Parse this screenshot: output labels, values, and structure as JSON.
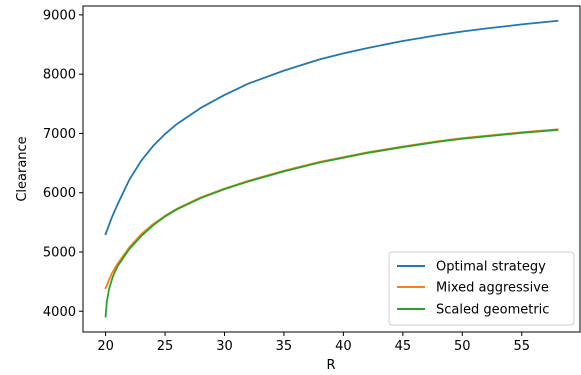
{
  "chart_data": {
    "type": "line",
    "xlabel": "R",
    "ylabel": "Clearance",
    "xlim": [
      18.1,
      59.9
    ],
    "ylim": [
      3650,
      9150
    ],
    "xticks": [
      20,
      25,
      30,
      35,
      40,
      45,
      50,
      55
    ],
    "yticks": [
      4000,
      5000,
      6000,
      7000,
      8000,
      9000
    ],
    "legend_position": "lower-right",
    "grid": false,
    "series": [
      {
        "name": "Optimal strategy",
        "color": "#1f77b4",
        "x": [
          20,
          20.5,
          21,
          22,
          23,
          24,
          25,
          26,
          28,
          30,
          32,
          35,
          38,
          40,
          42,
          45,
          48,
          50,
          52,
          55,
          58
        ],
        "y": [
          5300,
          5570,
          5800,
          6220,
          6540,
          6790,
          6990,
          7160,
          7430,
          7650,
          7840,
          8060,
          8250,
          8350,
          8440,
          8560,
          8660,
          8720,
          8770,
          8840,
          8900
        ]
      },
      {
        "name": "Mixed aggressive",
        "color": "#ff7f0e",
        "x": [
          20,
          20.5,
          21,
          22,
          23,
          24,
          25,
          26,
          28,
          30,
          32,
          35,
          38,
          40,
          42,
          45,
          48,
          50,
          52,
          55,
          58
        ],
        "y": [
          4390,
          4630,
          4800,
          5080,
          5300,
          5470,
          5610,
          5730,
          5920,
          6070,
          6200,
          6370,
          6520,
          6600,
          6680,
          6780,
          6870,
          6920,
          6960,
          7020,
          7070
        ]
      },
      {
        "name": "Scaled geometric",
        "color": "#2ca02c",
        "x": [
          20,
          20.1,
          20.3,
          20.6,
          21,
          22,
          23,
          24,
          25,
          26,
          28,
          30,
          32,
          35,
          38,
          40,
          42,
          45,
          48,
          50,
          52,
          55,
          58
        ],
        "y": [
          3910,
          4160,
          4380,
          4580,
          4760,
          5050,
          5270,
          5450,
          5600,
          5720,
          5910,
          6060,
          6190,
          6360,
          6510,
          6590,
          6670,
          6770,
          6860,
          6910,
          6950,
          7010,
          7060
        ]
      }
    ]
  }
}
